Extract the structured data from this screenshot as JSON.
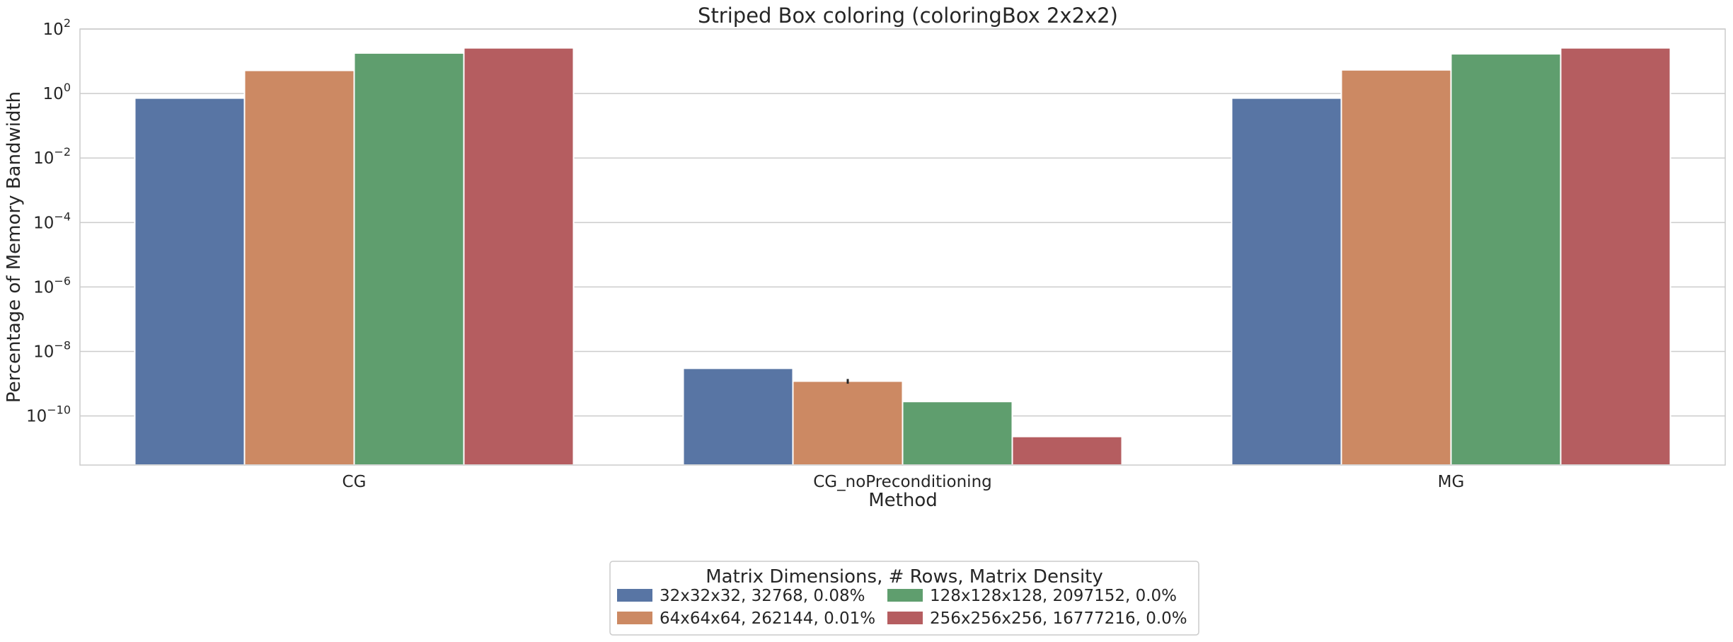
{
  "chart_data": {
    "type": "bar",
    "title": "Striped Box coloring (coloringBox 2x2x2)",
    "xlabel": "Method",
    "ylabel": "Percentage of Memory Bandwidth",
    "yscale": "log",
    "ylim": [
      3e-12,
      100
    ],
    "yticks": [
      {
        "value": 100,
        "base": "10",
        "exp": "2"
      },
      {
        "value": 1,
        "base": "10",
        "exp": "0"
      },
      {
        "value": 0.01,
        "base": "10",
        "exp": "−2"
      },
      {
        "value": 0.0001,
        "base": "10",
        "exp": "−4"
      },
      {
        "value": 1e-06,
        "base": "10",
        "exp": "−6"
      },
      {
        "value": 1e-08,
        "base": "10",
        "exp": "−8"
      },
      {
        "value": 1e-10,
        "base": "10",
        "exp": "−10"
      }
    ],
    "grid": true,
    "categories": [
      "CG",
      "CG_noPreconditioning",
      "MG"
    ],
    "series": [
      {
        "name": "32x32x32, 32768, 0.08%",
        "color": "#5875a4",
        "values": [
          0.72,
          3e-09,
          0.72
        ]
      },
      {
        "name": "64x64x64, 262144, 0.01%",
        "color": "#cc8963",
        "values": [
          5.2,
          1.2e-09,
          5.4
        ]
      },
      {
        "name": "128x128x128, 2097152, 0.0%",
        "color": "#5f9e6e",
        "values": [
          18,
          2.8e-10,
          17
        ]
      },
      {
        "name": "256x256x256, 16777216, 0.0%",
        "color": "#b55d60",
        "values": [
          26,
          2.3e-11,
          26
        ]
      }
    ],
    "error_bars": [
      {
        "category": "CG_noPreconditioning",
        "series_index": 1,
        "low": 1e-09,
        "high": 1.4e-09
      }
    ],
    "legend": {
      "title": "Matrix Dimensions, # Rows, Matrix Density",
      "placement": "bottom-center",
      "columns": 2
    }
  }
}
